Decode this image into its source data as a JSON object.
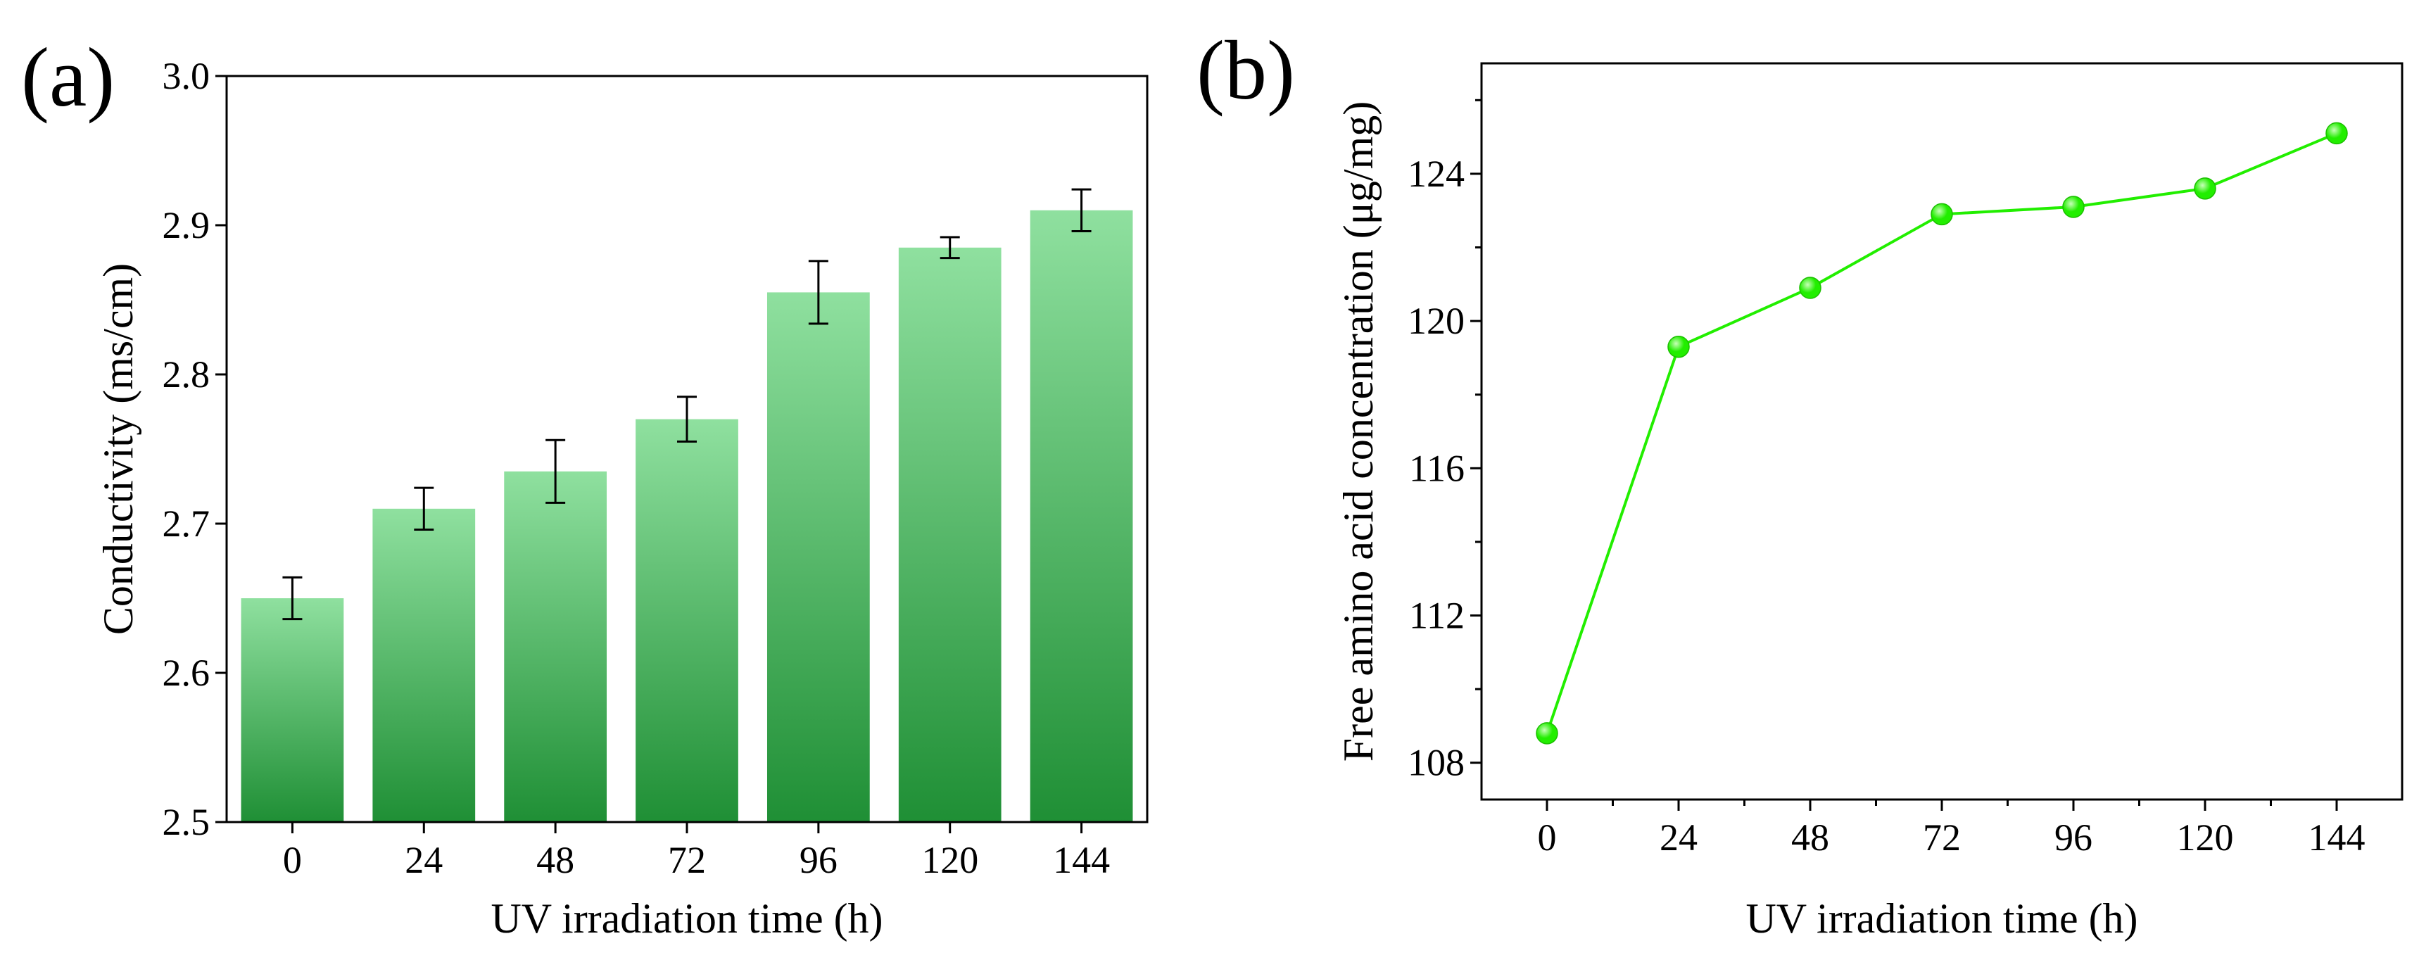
{
  "colors": {
    "bar_light": "#8fe09f",
    "bar_dark": "#1f8f35",
    "line": "#22ee00",
    "marker_light": "#c8ffb8",
    "axis": "#000000"
  },
  "chart_data": [
    {
      "panel": "(a)",
      "type": "bar",
      "categories": [
        "0",
        "24",
        "48",
        "72",
        "96",
        "120",
        "144"
      ],
      "values": [
        2.65,
        2.71,
        2.735,
        2.77,
        2.855,
        2.885,
        2.91
      ],
      "errors": [
        0.014,
        0.014,
        0.021,
        0.015,
        0.021,
        0.007,
        0.014
      ],
      "xlabel": "UV irradiation time (h)",
      "ylabel": "Conductivity (ms/cm)",
      "ylim": [
        2.5,
        3.0
      ],
      "yticks": [
        2.5,
        2.6,
        2.7,
        2.8,
        2.9,
        3.0
      ],
      "ytick_labels": [
        "2.5",
        "2.6",
        "2.7",
        "2.8",
        "2.9",
        "3.0"
      ]
    },
    {
      "panel": "(b)",
      "type": "line",
      "x": [
        0,
        24,
        48,
        72,
        96,
        120,
        144
      ],
      "xtick_labels": [
        "0",
        "24",
        "48",
        "72",
        "96",
        "120",
        "144"
      ],
      "values": [
        108.8,
        119.3,
        120.9,
        122.9,
        123.1,
        123.6,
        125.1
      ],
      "xlabel": "UV irradiation time (h)",
      "ylabel": "Free amino acid concentration (μg/mg)",
      "ylim": [
        107.0,
        127.0
      ],
      "yticks": [
        108,
        112,
        116,
        120,
        124
      ],
      "ytick_labels": [
        "108",
        "112",
        "116",
        "120",
        "124"
      ],
      "minor_yticks": [
        110,
        114,
        118,
        122,
        126
      ]
    }
  ]
}
